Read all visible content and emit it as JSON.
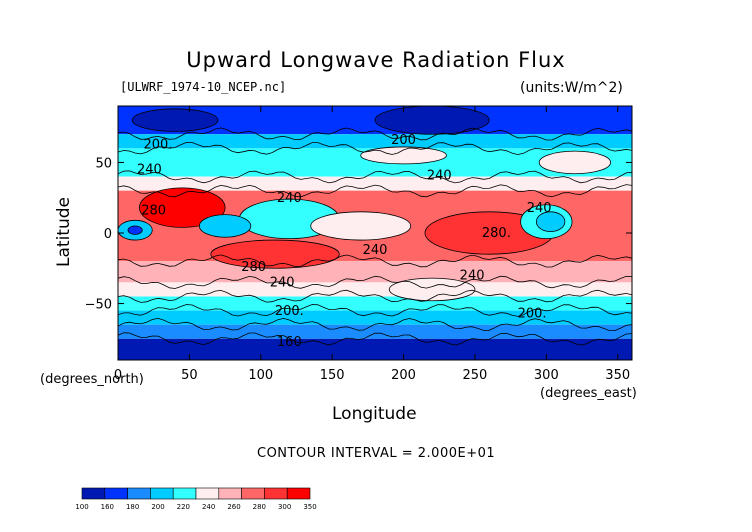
{
  "chart_data": {
    "type": "contour",
    "title": "Upward Longwave Radiation Flux",
    "source_label": "[ULWRF_1974-10_NCEP.nc]",
    "units_label": "(units:W/m^2)",
    "xlabel": "Longitude",
    "ylabel": "Latitude",
    "x_units_label": "(degrees_east)",
    "y_units_label": "(degrees_north)",
    "xlim": [
      0,
      360
    ],
    "ylim": [
      -90,
      90
    ],
    "x_ticks": [
      0,
      50,
      100,
      150,
      200,
      250,
      300,
      350
    ],
    "y_ticks": [
      -50,
      0,
      50
    ],
    "contour_interval_text": "CONTOUR INTERVAL = 2.000E+01",
    "contour_labels": [
      {
        "text": "200.",
        "lon": 28,
        "lat": 60
      },
      {
        "text": "240",
        "lon": 22,
        "lat": 42
      },
      {
        "text": "280",
        "lon": 25,
        "lat": 13
      },
      {
        "text": "240",
        "lon": 120,
        "lat": 22
      },
      {
        "text": "200",
        "lon": 200,
        "lat": 63
      },
      {
        "text": "240",
        "lon": 225,
        "lat": 38
      },
      {
        "text": "280.",
        "lon": 265,
        "lat": -3
      },
      {
        "text": "240",
        "lon": 295,
        "lat": 15
      },
      {
        "text": "240",
        "lon": 180,
        "lat": -15
      },
      {
        "text": "280",
        "lon": 95,
        "lat": -27
      },
      {
        "text": "240",
        "lon": 115,
        "lat": -38
      },
      {
        "text": "240",
        "lon": 248,
        "lat": -33
      },
      {
        "text": "200.",
        "lon": 120,
        "lat": -58
      },
      {
        "text": "200.",
        "lon": 290,
        "lat": -60
      },
      {
        "text": "160",
        "lon": 120,
        "lat": -80
      }
    ],
    "colorbar": {
      "levels": [
        "100",
        "160",
        "180",
        "200",
        "220",
        "240",
        "260",
        "280",
        "300",
        "350"
      ],
      "colors": [
        "#0019b3",
        "#0033ff",
        "#1a8cff",
        "#00ccff",
        "#33ffff",
        "#ffeef0",
        "#ffb3b8",
        "#ff6666",
        "#ff3333",
        "#ff0000"
      ]
    },
    "bands": [
      {
        "lat": [
          70,
          90
        ],
        "color": "#0033ff"
      },
      {
        "lat": [
          60,
          70
        ],
        "color": "#00ccff"
      },
      {
        "lat": [
          40,
          60
        ],
        "color": "#33ffff"
      },
      {
        "lat": [
          30,
          40
        ],
        "color": "#ffeef0"
      },
      {
        "lat": [
          -20,
          30
        ],
        "color": "#ff6666"
      },
      {
        "lat": [
          -35,
          -20
        ],
        "color": "#ffb3b8"
      },
      {
        "lat": [
          -45,
          -35
        ],
        "color": "#ffeef0"
      },
      {
        "lat": [
          -55,
          -45
        ],
        "color": "#33ffff"
      },
      {
        "lat": [
          -65,
          -55
        ],
        "color": "#00ccff"
      },
      {
        "lat": [
          -75,
          -65
        ],
        "color": "#1a8cff"
      },
      {
        "lat": [
          -90,
          -75
        ],
        "color": "#0019b3"
      }
    ],
    "blobs": [
      {
        "lon": 45,
        "lat": 18,
        "rlon": 30,
        "rlat": 14,
        "color": "#ff0000"
      },
      {
        "lon": 12,
        "lat": 2,
        "rlon": 12,
        "rlat": 7,
        "color": "#00ccff"
      },
      {
        "lon": 12,
        "lat": 2,
        "rlon": 5,
        "rlat": 3,
        "color": "#0033ff"
      },
      {
        "lon": 120,
        "lat": 10,
        "rlon": 35,
        "rlat": 14,
        "color": "#33ffff"
      },
      {
        "lon": 75,
        "lat": 5,
        "rlon": 18,
        "rlat": 8,
        "color": "#00ccff"
      },
      {
        "lon": 170,
        "lat": 5,
        "rlon": 35,
        "rlat": 10,
        "color": "#ffeef0"
      },
      {
        "lon": 260,
        "lat": 0,
        "rlon": 45,
        "rlat": 15,
        "color": "#ff3333"
      },
      {
        "lon": 110,
        "lat": -15,
        "rlon": 45,
        "rlat": 10,
        "color": "#ff3333"
      },
      {
        "lon": 300,
        "lat": 8,
        "rlon": 18,
        "rlat": 12,
        "color": "#33ffff"
      },
      {
        "lon": 303,
        "lat": 8,
        "rlon": 10,
        "rlat": 7,
        "color": "#00ccff"
      },
      {
        "lon": 220,
        "lat": 80,
        "rlon": 40,
        "rlat": 10,
        "color": "#0019b3"
      },
      {
        "lon": 40,
        "lat": 80,
        "rlon": 30,
        "rlat": 8,
        "color": "#0019b3"
      },
      {
        "lon": 200,
        "lat": 55,
        "rlon": 30,
        "rlat": 6,
        "color": "#ffeef0"
      },
      {
        "lon": 320,
        "lat": 50,
        "rlon": 25,
        "rlat": 8,
        "color": "#ffeef0"
      },
      {
        "lon": 220,
        "lat": -40,
        "rlon": 30,
        "rlat": 8,
        "color": "#ffeef0"
      }
    ]
  }
}
